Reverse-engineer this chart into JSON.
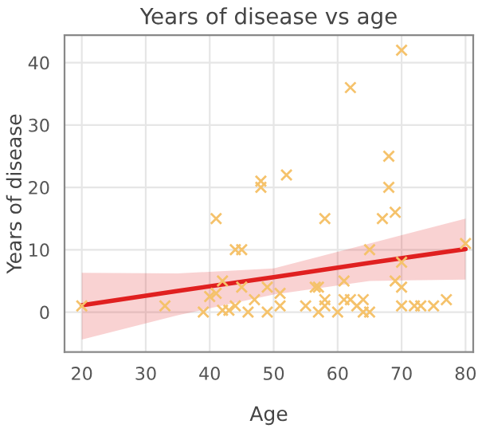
{
  "chart_data": {
    "type": "scatter",
    "title": "Years of disease vs age",
    "xlabel": "Age",
    "ylabel": "Years of disease",
    "xlim": [
      17.3,
      81.2
    ],
    "xticks": [
      20,
      30,
      40,
      50,
      60,
      70,
      80
    ],
    "ylim": [
      -6.4,
      44.4
    ],
    "yticks": [
      0,
      10,
      20,
      30,
      40
    ],
    "grid": true,
    "legend": false,
    "series": [
      {
        "marker": "cross",
        "color": "#f5c26b",
        "x": [
          70,
          62,
          68,
          52,
          48,
          48,
          68,
          41,
          58,
          67,
          69,
          44,
          45,
          65,
          80,
          70,
          69,
          70,
          61,
          56.5,
          57,
          49,
          45,
          42,
          40,
          41,
          33,
          39,
          42,
          43,
          44,
          46,
          47,
          49,
          51,
          51,
          55,
          57,
          58,
          58,
          60,
          61,
          62,
          63,
          64,
          64,
          65,
          70,
          72,
          73,
          75,
          77,
          20
        ],
        "values": [
          42,
          36,
          25,
          22,
          21,
          20,
          20,
          15,
          15,
          15,
          16,
          10,
          10,
          10,
          11,
          8,
          5,
          4,
          5,
          4,
          4,
          4,
          4,
          5,
          2.5,
          3,
          1,
          0,
          0.3,
          0.3,
          1,
          0,
          2,
          0,
          3,
          1,
          1,
          0,
          2,
          1,
          0,
          2,
          2,
          1,
          2,
          0,
          0,
          1,
          1,
          1,
          1,
          2,
          1
        ]
      },
      {
        "type": "line",
        "color": "#e02020",
        "line_style": "solid",
        "x": [
          20,
          35,
          50,
          65,
          80
        ],
        "values": [
          1.1,
          3.4,
          5.6,
          7.9,
          10.1
        ],
        "lower": [
          -4.4,
          -0.5,
          2.8,
          5.0,
          5.2
        ],
        "upper": [
          6.3,
          6.2,
          7.0,
          11.0,
          15.0
        ]
      }
    ]
  }
}
